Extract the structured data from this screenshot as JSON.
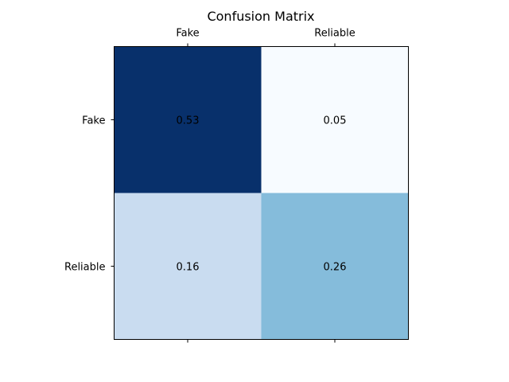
{
  "chart_data": {
    "type": "heatmap",
    "title": "Confusion Matrix",
    "x_categories": [
      "Fake",
      "Reliable"
    ],
    "y_categories": [
      "Fake",
      "Reliable"
    ],
    "x_tick_position": "top",
    "values": [
      [
        0.53,
        0.05
      ],
      [
        0.16,
        0.26
      ]
    ],
    "cell_labels": [
      [
        "0.53",
        "0.05"
      ],
      [
        "0.16",
        "0.26"
      ]
    ],
    "colormap": "Blues",
    "cell_colors": [
      [
        "#08306b",
        "#f7fbff"
      ],
      [
        "#c9dcf0",
        "#85bcdb"
      ]
    ],
    "grid": false
  }
}
